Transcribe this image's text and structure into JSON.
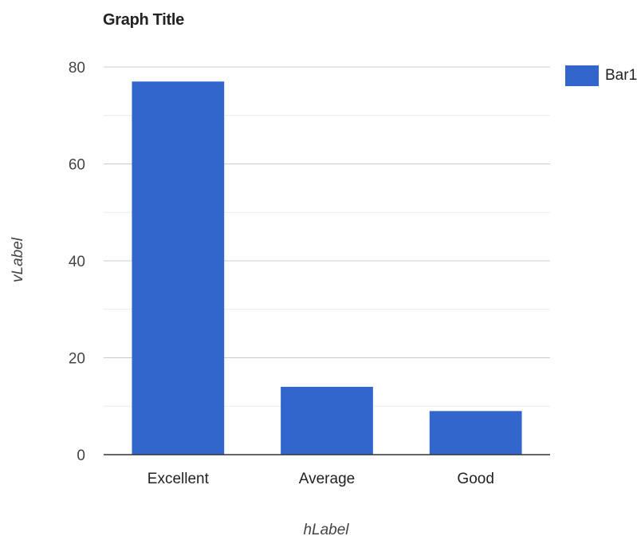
{
  "chart_data": {
    "type": "bar",
    "title": "Graph Title",
    "xlabel": "hLabel",
    "ylabel": "vLabel",
    "categories": [
      "Excellent",
      "Average",
      "Good"
    ],
    "series": [
      {
        "name": "Bar1",
        "values": [
          77,
          14,
          9
        ]
      }
    ],
    "ylim": [
      0,
      80
    ],
    "yticks": [
      "0",
      "20",
      "40",
      "60",
      "80"
    ],
    "grid": true,
    "legend_position": "right",
    "colors": {
      "bar": "#3366cc",
      "major_grid": "#cccccc",
      "minor_grid": "#ebebeb",
      "axis": "#333333",
      "text": "#444444"
    }
  }
}
